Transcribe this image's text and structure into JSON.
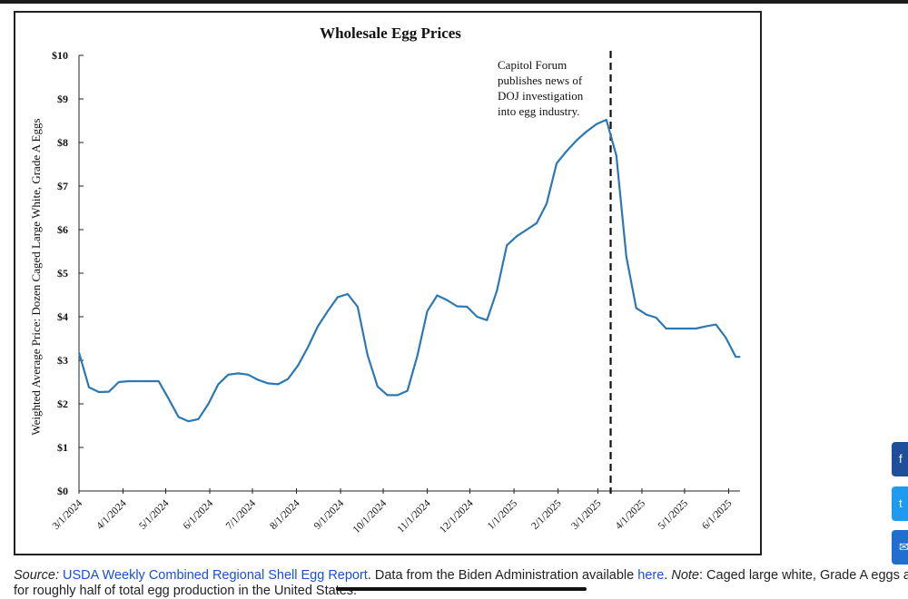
{
  "chart_data": {
    "type": "line",
    "title": "Wholesale Egg Prices",
    "xlabel": "",
    "ylabel": "Weighted Average Price: Dozen Caged Large White, Grade A Eggs",
    "ylim": [
      0,
      10
    ],
    "y_ticks": [
      "$0",
      "$1",
      "$2",
      "$3",
      "$4",
      "$5",
      "$6",
      "$7",
      "$8",
      "$9",
      "$10"
    ],
    "x_ticks": [
      "3/1/2024",
      "4/1/2024",
      "5/1/2024",
      "6/1/2024",
      "7/1/2024",
      "8/1/2024",
      "9/1/2024",
      "10/1/2024",
      "11/1/2024",
      "12/1/2024",
      "1/1/2025",
      "2/1/2025",
      "3/1/2025",
      "4/1/2025",
      "5/1/2025",
      "6/1/2025"
    ],
    "x_range": [
      "2024-03-01",
      "2025-06-09"
    ],
    "grid": false,
    "series": [
      {
        "color": "#2c78b4",
        "points": [
          [
            "2024-03-01",
            3.18
          ],
          [
            "2024-03-08",
            2.38
          ],
          [
            "2024-03-15",
            2.27
          ],
          [
            "2024-03-22",
            2.28
          ],
          [
            "2024-03-29",
            2.5
          ],
          [
            "2024-04-05",
            2.52
          ],
          [
            "2024-04-12",
            2.52
          ],
          [
            "2024-04-19",
            2.52
          ],
          [
            "2024-04-26",
            2.52
          ],
          [
            "2024-05-03",
            2.12
          ],
          [
            "2024-05-10",
            1.7
          ],
          [
            "2024-05-17",
            1.6
          ],
          [
            "2024-05-24",
            1.65
          ],
          [
            "2024-05-31",
            2.0
          ],
          [
            "2024-06-07",
            2.45
          ],
          [
            "2024-06-14",
            2.67
          ],
          [
            "2024-06-21",
            2.7
          ],
          [
            "2024-06-28",
            2.67
          ],
          [
            "2024-07-05",
            2.55
          ],
          [
            "2024-07-12",
            2.47
          ],
          [
            "2024-07-19",
            2.45
          ],
          [
            "2024-07-26",
            2.57
          ],
          [
            "2024-08-02",
            2.88
          ],
          [
            "2024-08-09",
            3.3
          ],
          [
            "2024-08-16",
            3.78
          ],
          [
            "2024-08-23",
            4.13
          ],
          [
            "2024-08-30",
            4.45
          ],
          [
            "2024-09-06",
            4.52
          ],
          [
            "2024-09-13",
            4.23
          ],
          [
            "2024-09-20",
            3.12
          ],
          [
            "2024-09-27",
            2.4
          ],
          [
            "2024-10-04",
            2.2
          ],
          [
            "2024-10-11",
            2.2
          ],
          [
            "2024-10-18",
            2.3
          ],
          [
            "2024-10-25",
            3.1
          ],
          [
            "2024-11-01",
            4.13
          ],
          [
            "2024-11-08",
            4.49
          ],
          [
            "2024-11-15",
            4.38
          ],
          [
            "2024-11-22",
            4.24
          ],
          [
            "2024-11-29",
            4.23
          ],
          [
            "2024-12-06",
            4.0
          ],
          [
            "2024-12-13",
            3.92
          ],
          [
            "2024-12-20",
            4.6
          ],
          [
            "2024-12-27",
            5.64
          ],
          [
            "2025-01-03",
            5.85
          ],
          [
            "2025-01-10",
            6.0
          ],
          [
            "2025-01-17",
            6.15
          ],
          [
            "2025-01-24",
            6.6
          ],
          [
            "2025-01-31",
            7.52
          ],
          [
            "2025-02-07",
            7.8
          ],
          [
            "2025-02-14",
            8.05
          ],
          [
            "2025-02-21",
            8.25
          ],
          [
            "2025-02-28",
            8.42
          ],
          [
            "2025-03-07",
            8.52
          ],
          [
            "2025-03-14",
            7.7
          ],
          [
            "2025-03-21",
            5.38
          ],
          [
            "2025-03-28",
            4.2
          ],
          [
            "2025-04-04",
            4.05
          ],
          [
            "2025-04-11",
            3.98
          ],
          [
            "2025-04-18",
            3.73
          ],
          [
            "2025-04-25",
            3.73
          ],
          [
            "2025-05-02",
            3.73
          ],
          [
            "2025-05-09",
            3.73
          ],
          [
            "2025-05-16",
            3.78
          ],
          [
            "2025-05-23",
            3.82
          ],
          [
            "2025-05-30",
            3.52
          ],
          [
            "2025-06-06",
            3.08
          ],
          [
            "2025-06-09",
            3.08
          ]
        ]
      }
    ],
    "reference_line": {
      "x": "2025-03-10",
      "style": "dashed",
      "annotation": [
        "Capitol Forum",
        "publishes news of",
        "DOJ investigation",
        "into egg industry."
      ]
    }
  },
  "caption": {
    "source_label": "Source:",
    "source_link": "USDA Weekly Combined Regional Shell Egg Report",
    "data_text": ". Data from the Biden Administration available",
    "here_link": "here",
    "note_label": "Note",
    "note_text": ": Caged large white, Grade A eggs account",
    "line2": "for roughly half of total egg production in the United States."
  },
  "social": {
    "colors": [
      "#1f4e9a",
      "#1d9bf0",
      "#1f6fd0"
    ],
    "icons": [
      "facebook-icon",
      "twitter-icon",
      "email-icon"
    ]
  }
}
